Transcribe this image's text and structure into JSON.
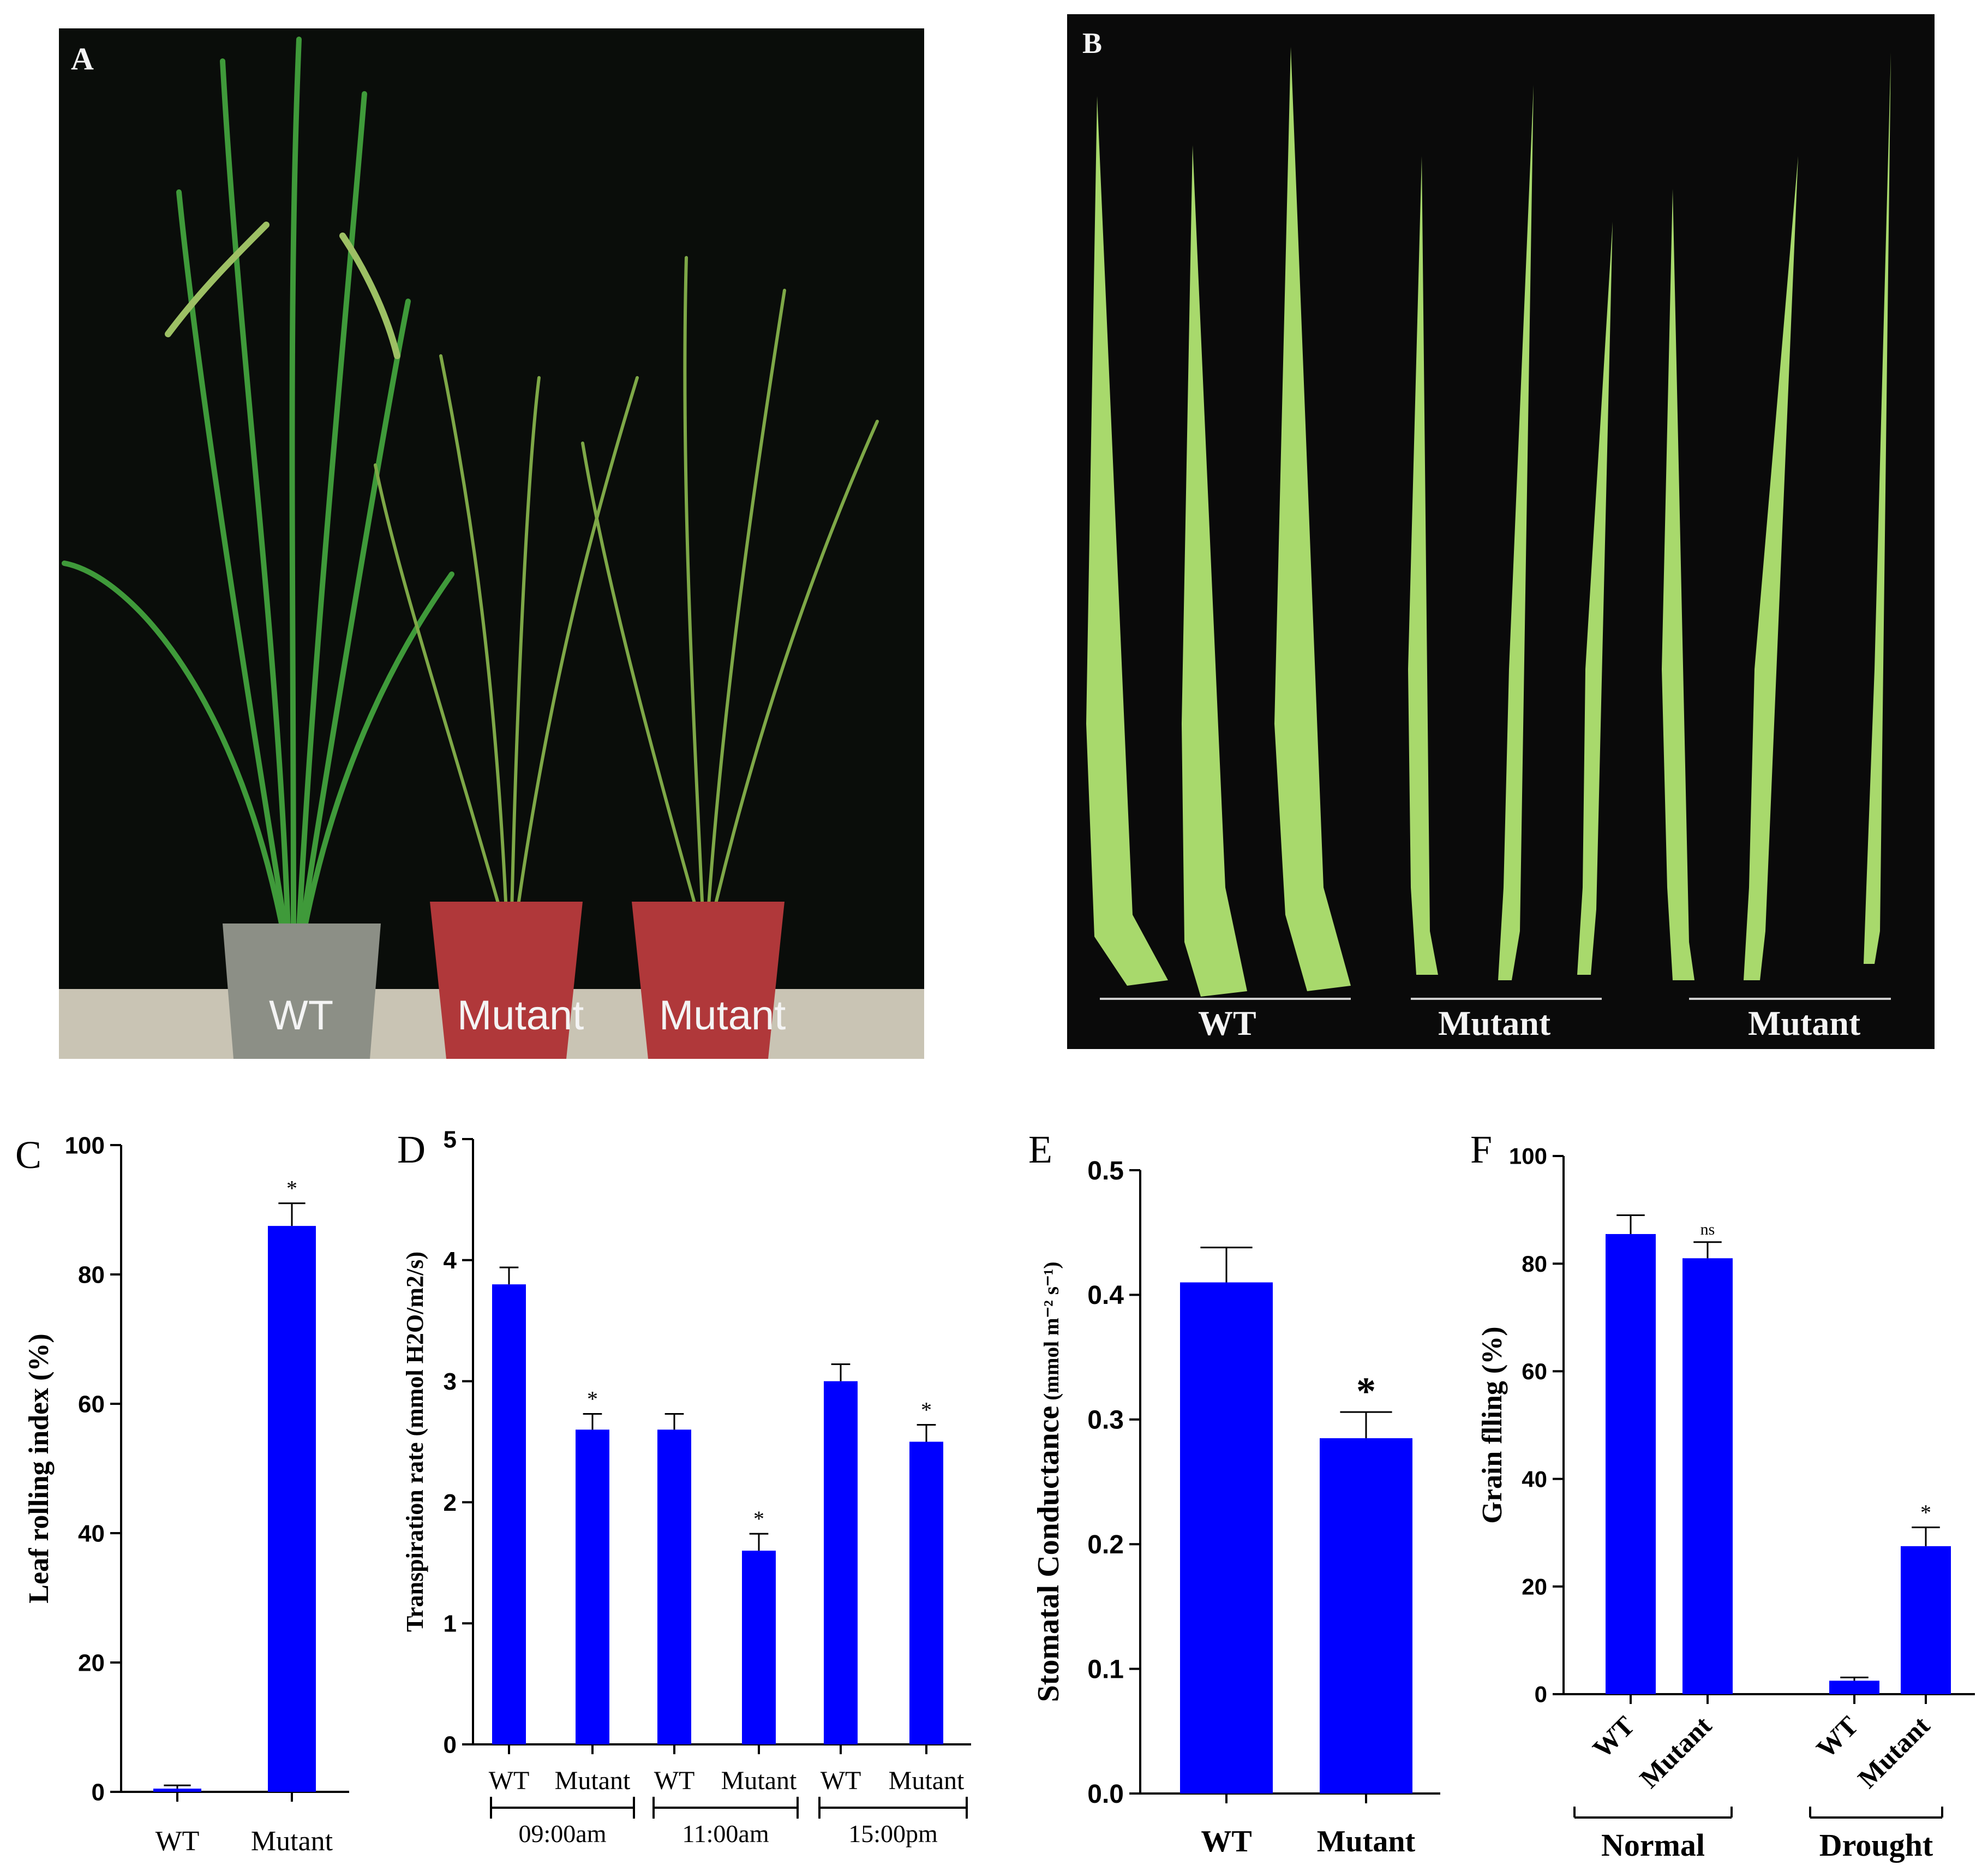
{
  "panels": {
    "a": {
      "letter": "A",
      "labels": [
        "WT",
        "Mutant",
        "Mutant"
      ]
    },
    "b": {
      "letter": "B",
      "labels": [
        "WT",
        "Mutant",
        "Mutant"
      ]
    }
  },
  "colors": {
    "bar": "#0000ff",
    "axis": "#000000",
    "photo_bg": "#0b0d0b",
    "leaf": "#a6d86a",
    "pot": "#b0383a"
  },
  "chart_data": [
    {
      "id": "C",
      "type": "bar",
      "letter": "C",
      "ylabel": "Leaf rolling index (%)",
      "categories": [
        "WT",
        "Mutant"
      ],
      "values": [
        0.5,
        87.5
      ],
      "errors": [
        0.5,
        3.5
      ],
      "significance": [
        "",
        "*"
      ],
      "ylim": [
        0,
        100
      ],
      "yticks": [
        "0",
        "20",
        "40",
        "60",
        "80",
        "100"
      ]
    },
    {
      "id": "D",
      "type": "bar",
      "letter": "D",
      "ylabel": "Transpiration rate (mmol H2O/m2/s)",
      "categories": [
        "WT",
        "Mutant",
        "WT",
        "Mutant",
        "WT",
        "Mutant"
      ],
      "groups": [
        "09:00am",
        "11:00am",
        "15:00pm"
      ],
      "values": [
        3.8,
        2.6,
        2.6,
        1.6,
        3.0,
        2.5
      ],
      "errors": [
        0.14,
        0.13,
        0.13,
        0.14,
        0.14,
        0.14
      ],
      "significance": [
        "",
        "*",
        "",
        "*",
        "",
        "*"
      ],
      "ylim": [
        0,
        5
      ],
      "yticks": [
        "0",
        "1",
        "2",
        "3",
        "4",
        "5"
      ]
    },
    {
      "id": "E",
      "type": "bar",
      "letter": "E",
      "ylabel": "Stomatal Conductance",
      "ylabel_unit": "(mmol m⁻² s⁻¹)",
      "categories": [
        "WT",
        "Mutant"
      ],
      "values": [
        0.41,
        0.285
      ],
      "errors": [
        0.028,
        0.021
      ],
      "significance": [
        "",
        "*"
      ],
      "ylim": [
        0,
        0.5
      ],
      "yticks": [
        "0.0",
        "0.1",
        "0.2",
        "0.3",
        "0.4",
        "0.5"
      ]
    },
    {
      "id": "F",
      "type": "bar",
      "letter": "F",
      "ylabel": "Grain flling (%)",
      "categories": [
        "WT",
        "Mutant",
        "WT",
        "Mutant"
      ],
      "groups": [
        "Normal",
        "Drought"
      ],
      "values": [
        85.5,
        81.0,
        2.5,
        27.5
      ],
      "errors": [
        3.5,
        3.0,
        0.6,
        3.5
      ],
      "significance": [
        "",
        "ns",
        "",
        "*"
      ],
      "ylim": [
        0,
        100
      ],
      "yticks": [
        "0",
        "20",
        "40",
        "60",
        "80",
        "100"
      ]
    }
  ]
}
